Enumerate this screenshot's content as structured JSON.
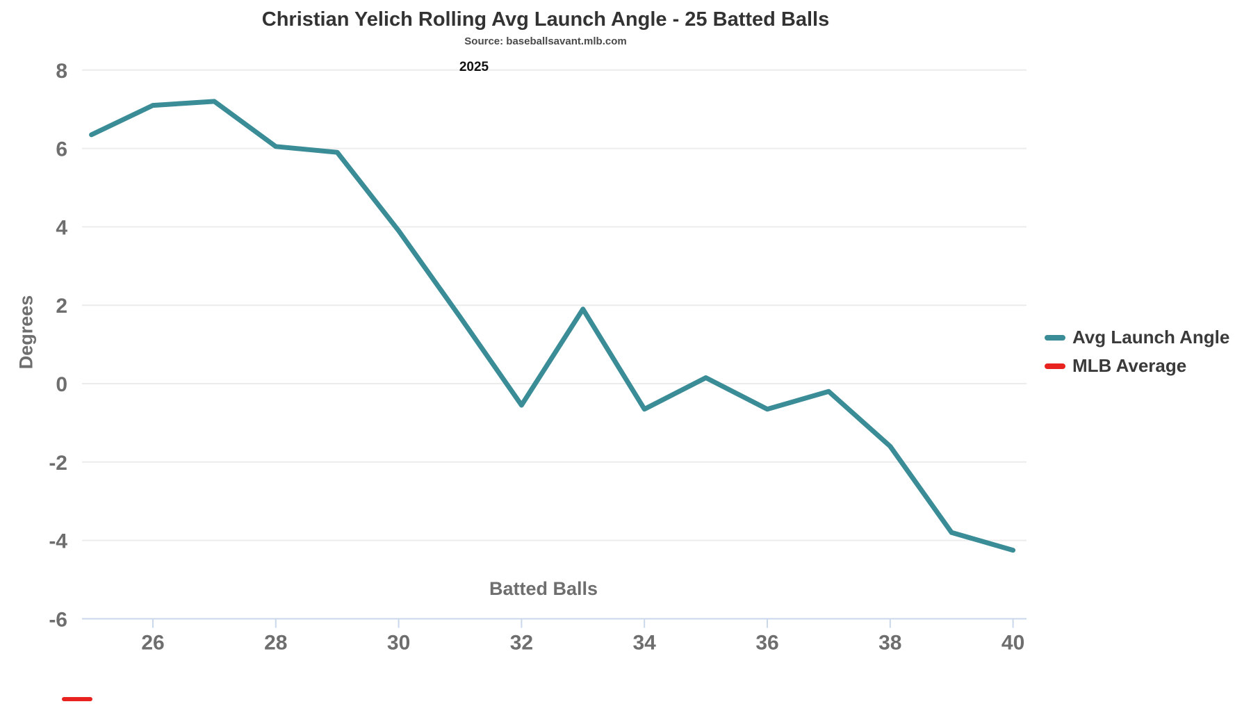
{
  "header": {
    "title": "Christian Yelich Rolling Avg Launch Angle - 25 Batted Balls",
    "subtitle": "Source: baseballsavant.mlb.com",
    "season_label": "2025"
  },
  "legend": {
    "items": [
      {
        "label": "Avg Launch Angle",
        "color": "#3a8c96"
      },
      {
        "label": "MLB Average",
        "color": "#e8231f"
      }
    ]
  },
  "colors": {
    "line": "#3a8c96",
    "mlb_average": "#e8231f",
    "gridline": "#ececec",
    "axis_line": "#c9d8ea",
    "tick_label": "#6e6e6e"
  },
  "chart_data": {
    "type": "line",
    "title": "Christian Yelich Rolling Avg Launch Angle - 25 Batted Balls",
    "subtitle": "Source: baseballsavant.mlb.com",
    "annotation": "2025",
    "xlabel": "Batted Balls",
    "ylabel": "Degrees",
    "x": [
      25,
      26,
      27,
      28,
      29,
      30,
      31,
      32,
      33,
      34,
      35,
      36,
      37,
      38,
      39,
      40
    ],
    "series": [
      {
        "name": "Avg Launch Angle",
        "color": "#3a8c96",
        "values": [
          6.35,
          7.1,
          7.2,
          6.05,
          5.9,
          3.9,
          1.7,
          -0.55,
          1.9,
          -0.65,
          0.15,
          -0.65,
          -0.2,
          -1.6,
          -3.8,
          -4.25
        ]
      },
      {
        "name": "MLB Average",
        "color": "#e8231f",
        "values": []
      }
    ],
    "xticks": [
      26,
      28,
      30,
      32,
      34,
      36,
      38,
      40
    ],
    "yticks": [
      8,
      6,
      4,
      2,
      0,
      -2,
      -4,
      -6
    ],
    "xlim": [
      25,
      40
    ],
    "ylim": [
      -6,
      8
    ],
    "grid": true,
    "legend_position": "right"
  }
}
